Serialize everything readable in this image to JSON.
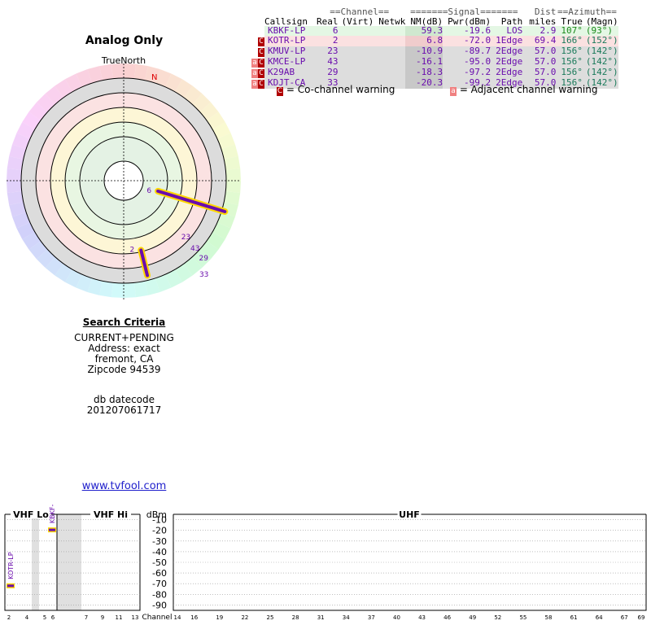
{
  "page": {
    "title": "Analog Only",
    "north_label": "TrueNorth",
    "north_marker": "N",
    "site_link": "www.tvfool.com"
  },
  "search": {
    "heading": "Search Criteria",
    "lines": [
      "CURRENT+PENDING",
      "Address: exact",
      "fremont, CA",
      "Zipcode 94539"
    ],
    "db_label": "db datecode",
    "db_value": "201207061717"
  },
  "table": {
    "group_headers": {
      "channel": "==Channel==",
      "signal": "=======Signal=======",
      "dist": "Dist",
      "azimuth": "==Azimuth=="
    },
    "columns": [
      "Callsign",
      "Real",
      "(Virt)",
      "Netwk",
      "NM(dB)",
      "Pwr(dBm)",
      "Path",
      "miles",
      "True",
      "(Magn)"
    ],
    "rows": [
      {
        "callsign": "KBKF-LP",
        "real": "6",
        "virt": "",
        "netwk": "",
        "nm": "59.3",
        "pwr": "-19.6",
        "path": "LOS",
        "dist": "2.9",
        "true_az": "107°",
        "magn_az": "(93°)",
        "co": false,
        "adj": false,
        "bg": "#e4f7e4",
        "nmbg": "#cfe8cf",
        "azcolor": "#1a8a1a"
      },
      {
        "callsign": "KOTR-LP",
        "real": "2",
        "virt": "",
        "netwk": "",
        "nm": "6.8",
        "pwr": "-72.0",
        "path": "1Edge",
        "dist": "69.4",
        "true_az": "166°",
        "magn_az": "(152°)",
        "co": true,
        "adj": false,
        "bg": "#fbe1e1",
        "nmbg": "#f0cccc",
        "azcolor": "#1a7a5a"
      },
      {
        "callsign": "KMUV-LP",
        "real": "23",
        "virt": "",
        "netwk": "",
        "nm": "-10.9",
        "pwr": "-89.7",
        "path": "2Edge",
        "dist": "57.0",
        "true_az": "156°",
        "magn_az": "(142°)",
        "co": true,
        "adj": false,
        "bg": "#dddddd",
        "nmbg": "#c8c8c8",
        "azcolor": "#1a7a5a"
      },
      {
        "callsign": "KMCE-LP",
        "real": "43",
        "virt": "",
        "netwk": "",
        "nm": "-16.1",
        "pwr": "-95.0",
        "path": "2Edge",
        "dist": "57.0",
        "true_az": "156°",
        "magn_az": "(142°)",
        "co": true,
        "adj": true,
        "bg": "#dddddd",
        "nmbg": "#c8c8c8",
        "azcolor": "#1a7a5a"
      },
      {
        "callsign": "K29AB",
        "real": "29",
        "virt": "",
        "netwk": "",
        "nm": "-18.3",
        "pwr": "-97.2",
        "path": "2Edge",
        "dist": "57.0",
        "true_az": "156°",
        "magn_az": "(142°)",
        "co": true,
        "adj": true,
        "bg": "#dddddd",
        "nmbg": "#c8c8c8",
        "azcolor": "#1a7a5a"
      },
      {
        "callsign": "KDJT-CA",
        "real": "33",
        "virt": "",
        "netwk": "",
        "nm": "-20.3",
        "pwr": "-99.2",
        "path": "2Edge",
        "dist": "57.0",
        "true_az": "156°",
        "magn_az": "(142°)",
        "co": true,
        "adj": true,
        "bg": "#dddddd",
        "nmbg": "#c8c8c8",
        "azcolor": "#1a7a5a"
      }
    ]
  },
  "legend": {
    "co_mark": "C",
    "co_text": "= Co-channel warning",
    "adj_mark": "a",
    "adj_text": "= Adjacent channel warning"
  },
  "chart_data": [
    {
      "type": "scatter",
      "title": "Analog Only",
      "subtype": "polar",
      "north": "TrueNorth",
      "stations": [
        {
          "channel_label": "6",
          "true_azimuth_deg": 107,
          "nm_db": 59.3
        },
        {
          "channel_label": "2",
          "true_azimuth_deg": 166,
          "nm_db": 6.8
        },
        {
          "channel_label": "23",
          "true_azimuth_deg": 156,
          "nm_db": -10.9
        },
        {
          "channel_label": "43",
          "true_azimuth_deg": 156,
          "nm_db": -16.1
        },
        {
          "channel_label": "29",
          "true_azimuth_deg": 156,
          "nm_db": -18.3
        },
        {
          "channel_label": "33",
          "true_azimuth_deg": 156,
          "nm_db": -20.3
        }
      ]
    },
    {
      "type": "bar",
      "subtype": "spectrum",
      "bands": [
        "VHF Lo",
        "VHF Hi",
        "UHF"
      ],
      "ylabel": "dBm",
      "y_ticks": [
        -10,
        -20,
        -30,
        -40,
        -50,
        -60,
        -70,
        -80,
        -90
      ],
      "ylim": [
        -95,
        -5
      ],
      "xlabel": "Channel",
      "vhf_lo_ticks": [
        "2",
        "4",
        "5",
        "6"
      ],
      "vhf_hi_ticks": [
        "7",
        "9",
        "11",
        "13"
      ],
      "uhf_ticks": [
        "14",
        "16",
        "19",
        "22",
        "25",
        "28",
        "31",
        "34",
        "37",
        "40",
        "43",
        "46",
        "49",
        "52",
        "55",
        "58",
        "61",
        "64",
        "67",
        "69"
      ],
      "series": [
        {
          "callsign": "KBKF-LP",
          "channel": "6",
          "pwr_dbm": -19.6
        },
        {
          "callsign": "KOTR-LP",
          "channel": "2",
          "pwr_dbm": -72.0
        }
      ]
    }
  ],
  "colors": {
    "station": "#6a0dad",
    "highlight": "#ffd700",
    "co_warn": "#b00000",
    "adj_warn": "#f08080"
  }
}
